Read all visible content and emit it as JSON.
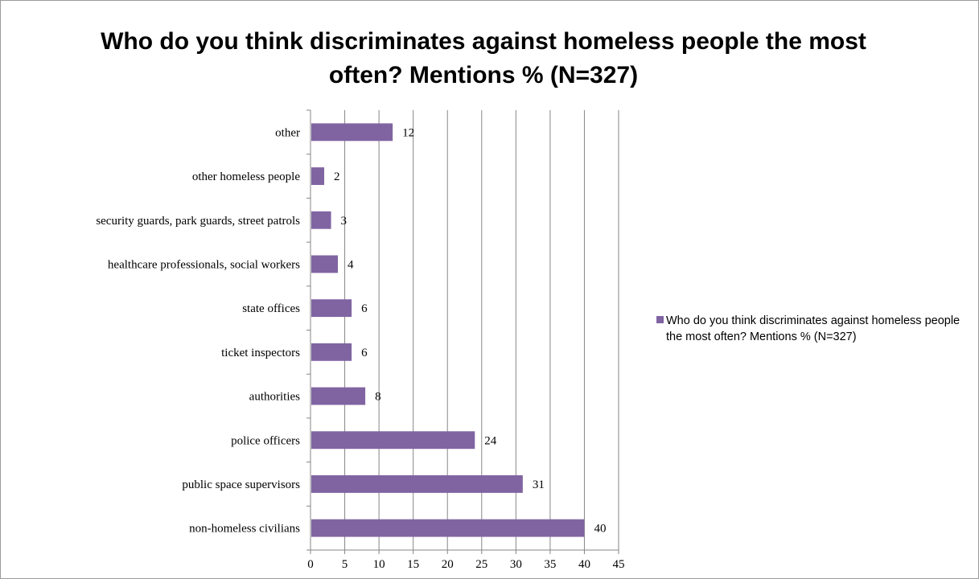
{
  "chart_data": {
    "type": "bar",
    "orientation": "horizontal",
    "title": "Who do you think discriminates against homeless people the most often? Mentions % (N=327)",
    "xlabel": "",
    "ylabel": "",
    "categories": [
      "other",
      "other homeless people",
      "security guards, park guards, street patrols",
      "healthcare professionals, social workers",
      "state offices",
      "ticket inspectors",
      "authorities",
      "police officers",
      "public space supervisors",
      "non-homeless civilians"
    ],
    "series": [
      {
        "name": "Who do you think discriminates against homeless people the most often? Mentions % (N=327)",
        "values": [
          12,
          2,
          3,
          4,
          6,
          6,
          8,
          24,
          31,
          40
        ],
        "color": "#8064a2"
      }
    ],
    "data_labels": [
      "12",
      "2",
      "3",
      "4",
      "6",
      "6",
      "8",
      "24",
      "31",
      "40"
    ],
    "xlim": [
      0,
      45
    ],
    "xticks": [
      "0",
      "5",
      "10",
      "15",
      "20",
      "25",
      "30",
      "35",
      "40",
      "45"
    ],
    "grid": "vertical",
    "legend_position": "right"
  }
}
